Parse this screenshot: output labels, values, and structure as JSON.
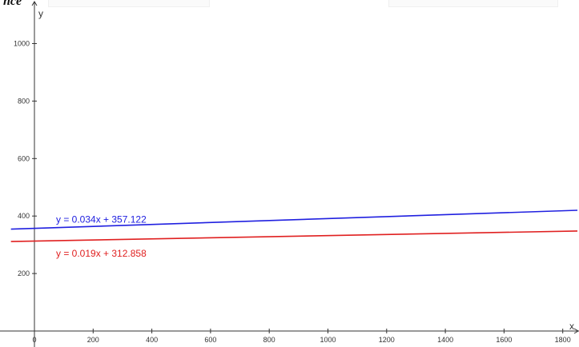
{
  "page": {
    "top_text": "nce"
  },
  "chart_data": {
    "type": "line",
    "xlabel": "x",
    "ylabel": "y",
    "xlim": [
      -80,
      1850
    ],
    "ylim": [
      -30,
      1080
    ],
    "x_ticks": [
      0,
      200,
      400,
      600,
      800,
      1000,
      1200,
      1400,
      1600,
      1800
    ],
    "y_ticks": [
      200,
      400,
      600,
      800,
      1000
    ],
    "grid": false,
    "series": [
      {
        "name": "y = 0.034x + 357.122",
        "slope": 0.034,
        "intercept": 357.122,
        "color": "#2020e0",
        "label_position": "above"
      },
      {
        "name": "y = 0.019x + 312.858",
        "slope": 0.019,
        "intercept": 312.858,
        "color": "#e02020",
        "label_position": "below"
      }
    ]
  }
}
